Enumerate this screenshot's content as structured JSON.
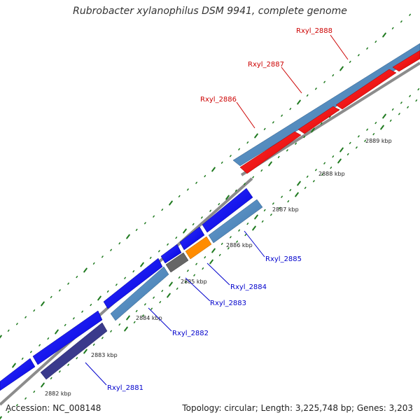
{
  "title": "Rubrobacter xylanophilus DSM 9941, complete genome",
  "footer": {
    "accession": "Accession: NC_008148",
    "stats": "Topology: circular; Length: 3,225,748 bp; Genes: 3,203"
  },
  "colors": {
    "background": "#ffffff",
    "backbone": "#8c8c8c",
    "tick": "#1f7a1f",
    "forward_label": "#cc0000",
    "reverse_label": "#0000cc"
  },
  "scale_labels": [
    "2882 kbp",
    "2883 kbp",
    "2884 kbp",
    "2885 kbp",
    "2886 kbp",
    "2887 kbp",
    "2888 kbp",
    "2889 kbp"
  ],
  "gene_labels": [
    {
      "text": "Rxyl_2881",
      "color": "#0000cc"
    },
    {
      "text": "Rxyl_2882",
      "color": "#0000cc"
    },
    {
      "text": "Rxyl_2883",
      "color": "#0000cc"
    },
    {
      "text": "Rxyl_2884",
      "color": "#0000cc"
    },
    {
      "text": "Rxyl_2885",
      "color": "#0000cc"
    },
    {
      "text": "Rxyl_2886",
      "color": "#cc0000"
    },
    {
      "text": "Rxyl_2887",
      "color": "#cc0000"
    },
    {
      "text": "Rxyl_2888",
      "color": "#cc0000"
    }
  ]
}
